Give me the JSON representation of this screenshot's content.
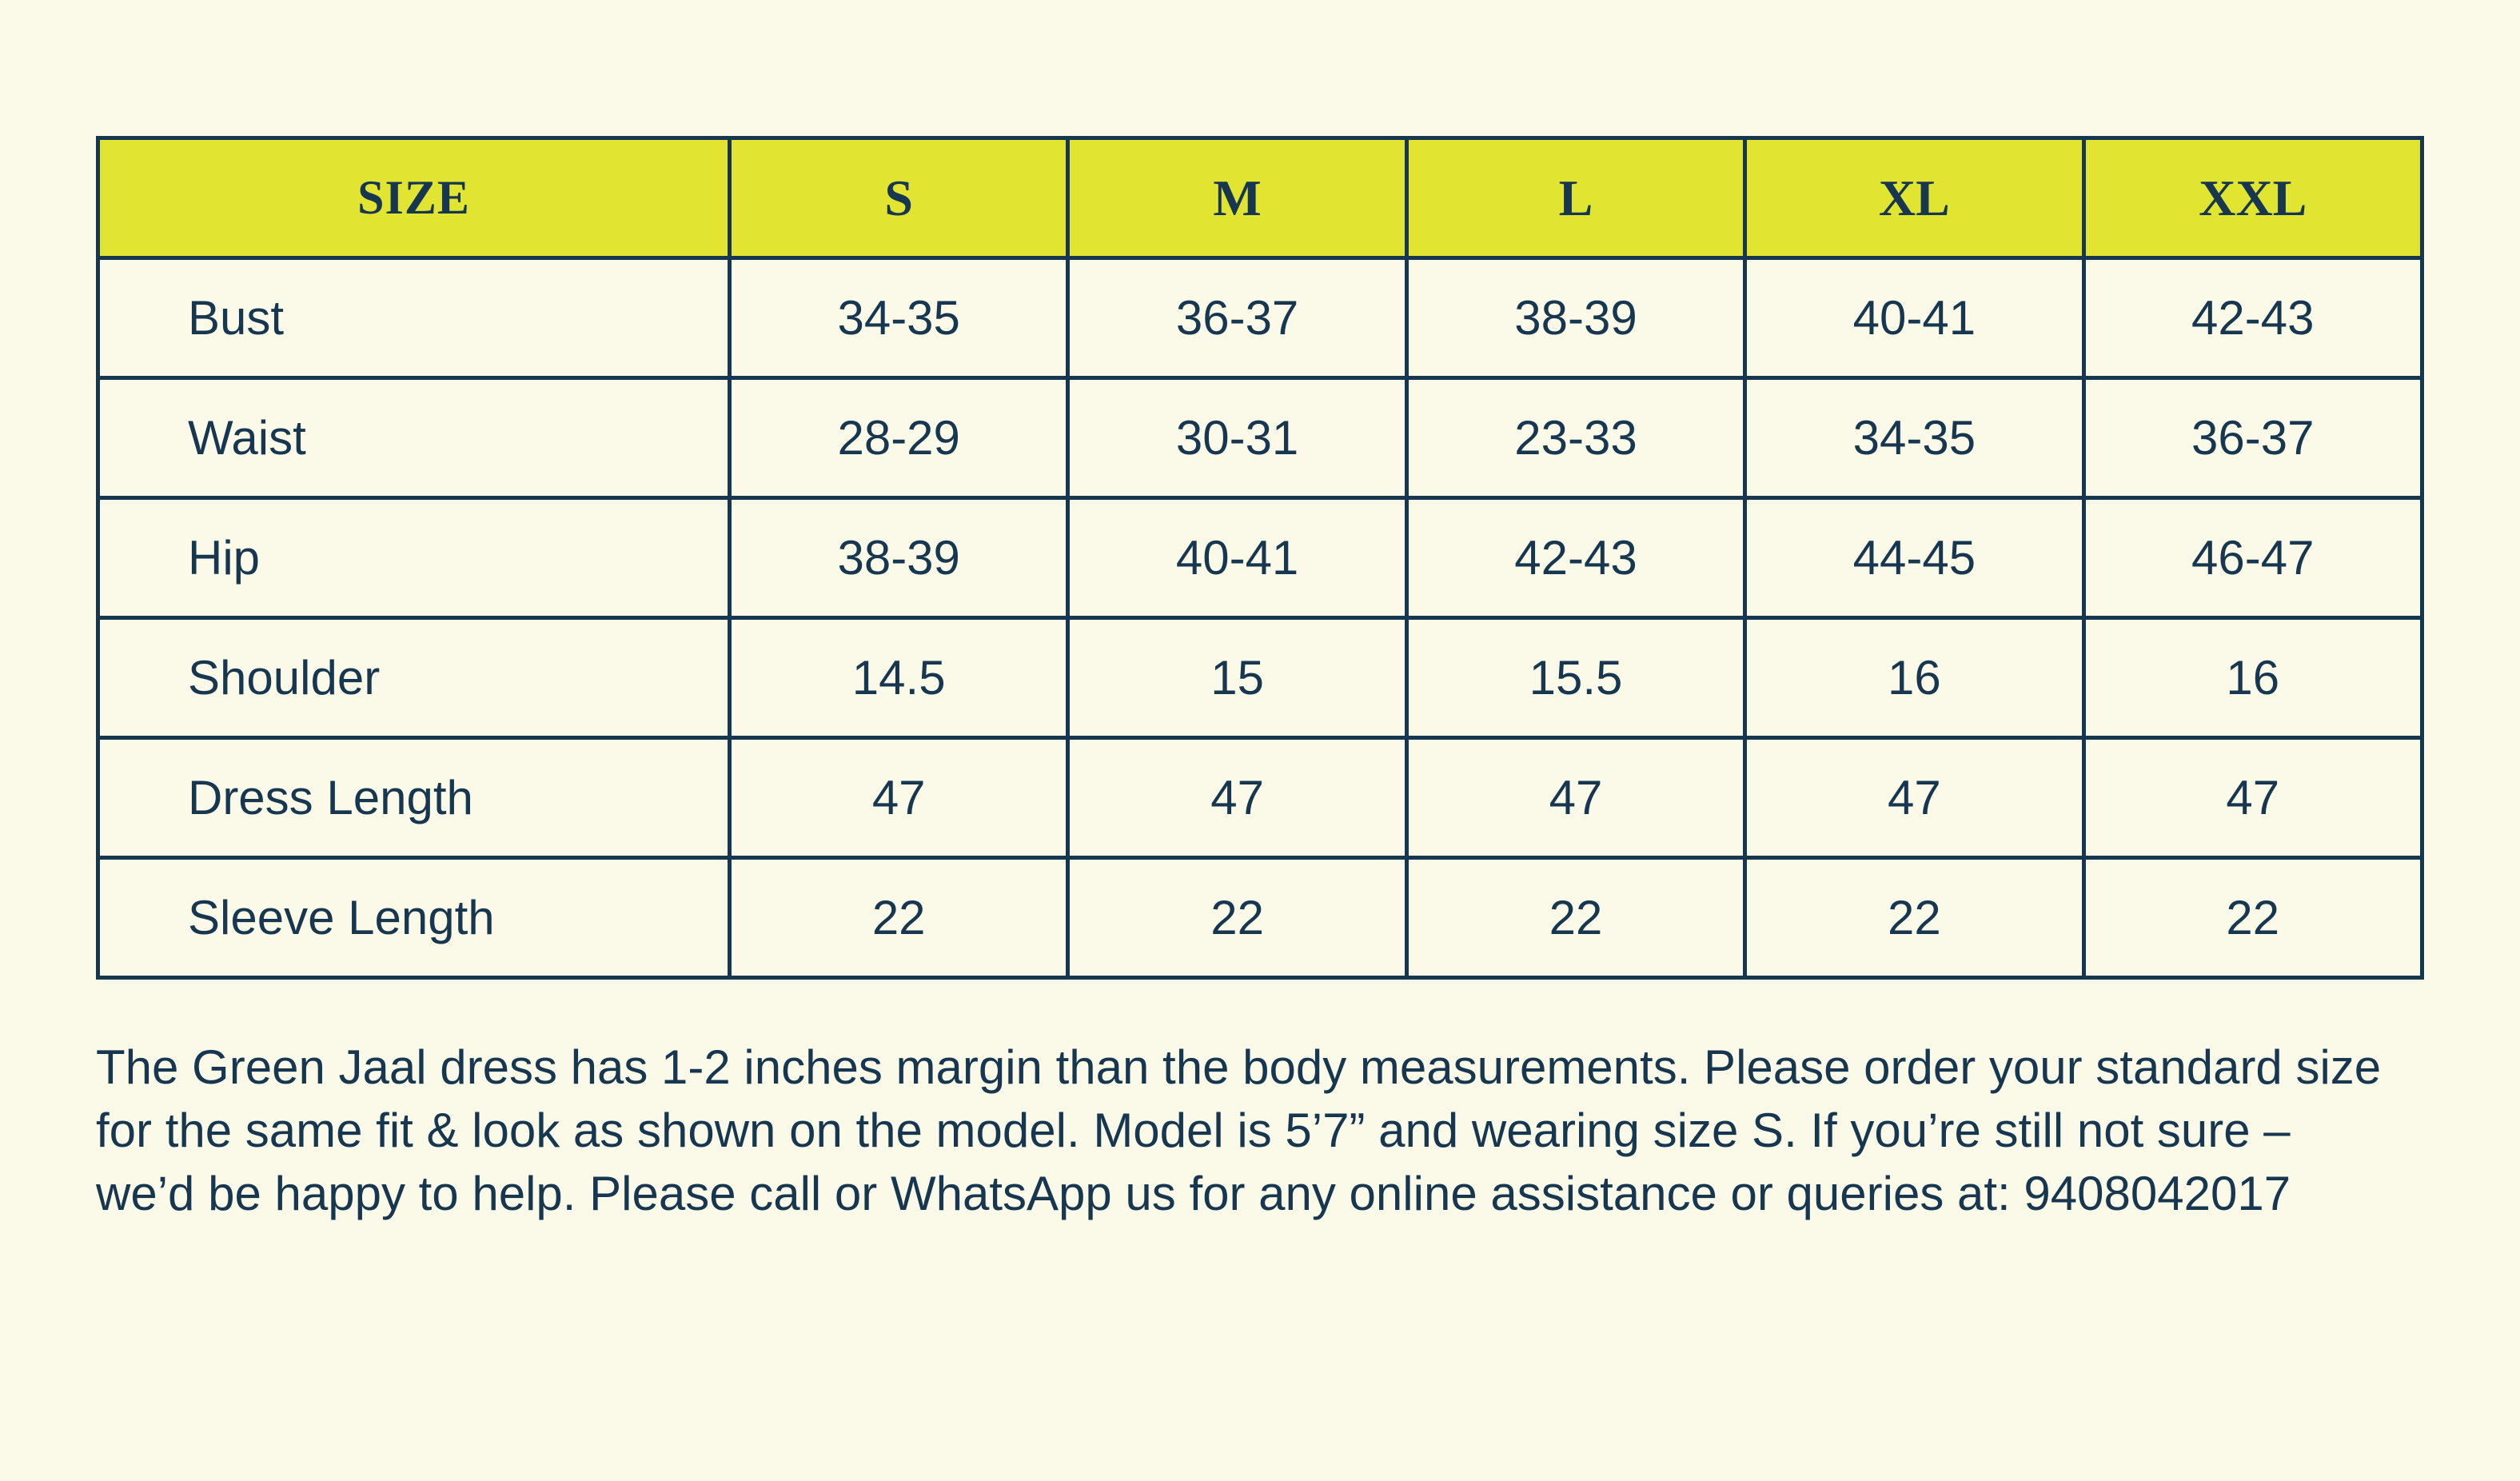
{
  "table": {
    "header_bg": "#e2e432",
    "border_color": "#16374f",
    "text_color": "#16374f",
    "page_bg": "#fbfae9",
    "columns": [
      "SIZE",
      "S",
      "M",
      "L",
      "XL",
      "XXL"
    ],
    "rows": [
      {
        "label": "Bust",
        "values": [
          "34-35",
          "36-37",
          "38-39",
          "40-41",
          "42-43"
        ]
      },
      {
        "label": "Waist",
        "values": [
          "28-29",
          "30-31",
          "23-33",
          "34-35",
          "36-37"
        ]
      },
      {
        "label": "Hip",
        "values": [
          "38-39",
          "40-41",
          "42-43",
          "44-45",
          "46-47"
        ]
      },
      {
        "label": "Shoulder",
        "values": [
          "14.5",
          "15",
          "15.5",
          "16",
          "16"
        ]
      },
      {
        "label": "Dress Length",
        "values": [
          "47",
          "47",
          "47",
          "47",
          "47"
        ]
      },
      {
        "label": "Sleeve Length",
        "values": [
          "22",
          "22",
          "22",
          "22",
          "22"
        ]
      }
    ]
  },
  "note": "The Green Jaal dress has 1-2 inches margin than the body measurements. Please order your standard size for the same fit & look as shown on the model. Model is 5’7” and wearing size S. If you’re still not sure – we’d be happy to help. Please call or WhatsApp us for any online assistance or queries at: 9408042017"
}
